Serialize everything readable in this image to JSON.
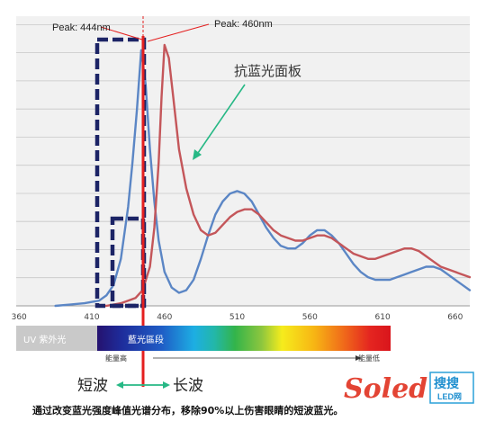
{
  "chart_data": {
    "type": "line",
    "x_ticks": [
      360,
      410,
      460,
      510,
      560,
      610,
      660
    ],
    "xlim": [
      358,
      670
    ],
    "ylim": [
      0,
      1.0
    ],
    "grid": true,
    "series": [
      {
        "color": "#5b86c5",
        "x": [
          385,
          395,
          405,
          415,
          420,
          425,
          430,
          435,
          438,
          441,
          444,
          447,
          450,
          453,
          456,
          460,
          465,
          470,
          475,
          480,
          485,
          490,
          495,
          500,
          505,
          510,
          515,
          520,
          525,
          530,
          535,
          540,
          545,
          550,
          555,
          560,
          565,
          570,
          575,
          580,
          585,
          590,
          595,
          600,
          605,
          610,
          615,
          620,
          625,
          630,
          635,
          640,
          645,
          650,
          655,
          660,
          665,
          670
        ],
        "y": [
          0.0,
          0.005,
          0.01,
          0.02,
          0.04,
          0.08,
          0.18,
          0.38,
          0.55,
          0.75,
          0.98,
          0.85,
          0.6,
          0.4,
          0.25,
          0.13,
          0.07,
          0.05,
          0.06,
          0.1,
          0.18,
          0.27,
          0.35,
          0.4,
          0.43,
          0.44,
          0.43,
          0.4,
          0.35,
          0.3,
          0.26,
          0.23,
          0.22,
          0.22,
          0.24,
          0.27,
          0.29,
          0.29,
          0.27,
          0.24,
          0.2,
          0.16,
          0.13,
          0.11,
          0.1,
          0.1,
          0.1,
          0.11,
          0.12,
          0.13,
          0.14,
          0.15,
          0.15,
          0.14,
          0.12,
          0.1,
          0.08,
          0.06
        ]
      },
      {
        "color": "#c4565a",
        "x": [
          415,
          420,
          425,
          430,
          435,
          440,
          445,
          450,
          453,
          456,
          458,
          460,
          463,
          466,
          470,
          475,
          480,
          485,
          490,
          495,
          500,
          505,
          510,
          515,
          520,
          525,
          530,
          535,
          540,
          545,
          550,
          555,
          560,
          565,
          570,
          575,
          580,
          585,
          590,
          595,
          600,
          605,
          610,
          615,
          620,
          625,
          630,
          635,
          640,
          645,
          650,
          655,
          660,
          665,
          670
        ],
        "y": [
          0.0,
          0.0,
          0.005,
          0.01,
          0.02,
          0.03,
          0.06,
          0.15,
          0.3,
          0.55,
          0.8,
          1.0,
          0.95,
          0.8,
          0.6,
          0.45,
          0.35,
          0.29,
          0.27,
          0.28,
          0.31,
          0.34,
          0.36,
          0.37,
          0.37,
          0.35,
          0.32,
          0.29,
          0.27,
          0.26,
          0.25,
          0.25,
          0.26,
          0.27,
          0.27,
          0.26,
          0.24,
          0.22,
          0.2,
          0.19,
          0.18,
          0.18,
          0.19,
          0.2,
          0.21,
          0.22,
          0.22,
          0.21,
          0.19,
          0.17,
          0.15,
          0.14,
          0.13,
          0.12,
          0.11
        ]
      }
    ],
    "annotations": {
      "peak_left": "Peak: 444nm",
      "peak_right": "Peak: 460nm",
      "panel_label": "抗蓝光面板"
    },
    "band": {
      "uv_label": "UV 紫外光",
      "blue_label": "藍光區段",
      "energy_high": "能量高",
      "energy_low": "能量低"
    },
    "arrows": {
      "short_wave": "短波",
      "long_wave": "长波"
    },
    "caption": "通过改变蓝光强度峰值光谱分布，移除90%以上伤害眼睛的短波蓝光。",
    "logo": {
      "brand": "Soled",
      "cn": "搜搜",
      "sub": "LED网"
    }
  }
}
